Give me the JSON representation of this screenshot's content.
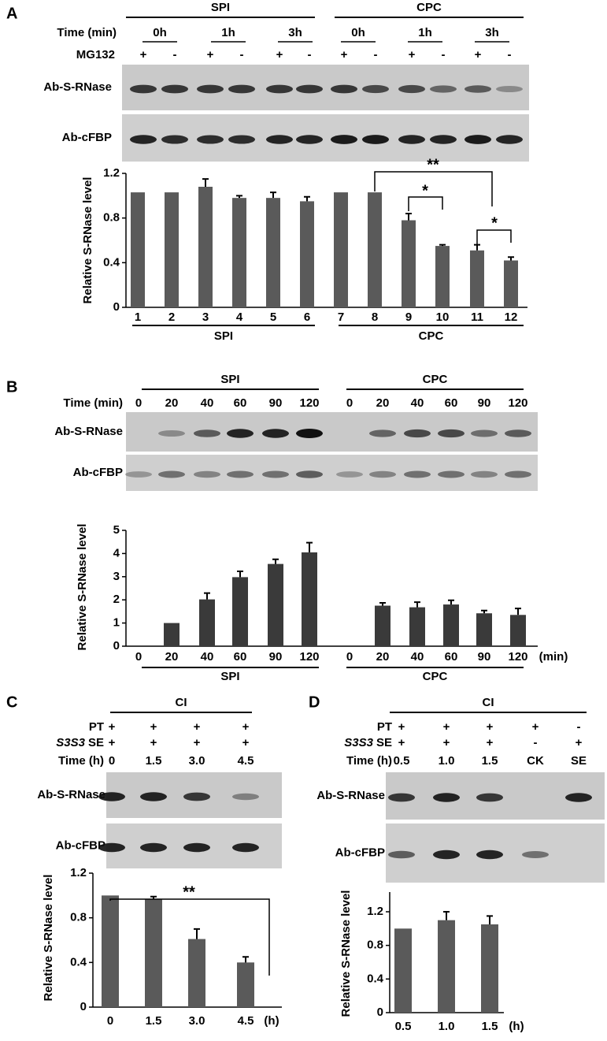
{
  "panels": [
    {
      "label": "A",
      "groups": [
        "SPI",
        "CPC"
      ],
      "time_label": "Time (min)",
      "times": [
        "0h",
        "1h",
        "3h",
        "0h",
        "1h",
        "3h"
      ],
      "rows": [
        {
          "label": "MG132",
          "signs": [
            "+",
            "-",
            "+",
            "-",
            "+",
            "-",
            "+",
            "-",
            "+",
            "-",
            "+",
            "-"
          ]
        }
      ],
      "blots": [
        "Ab-S-RNase",
        "Ab-cFBP"
      ]
    },
    {
      "label": "B",
      "groups": [
        "SPI",
        "CPC"
      ],
      "time_label": "Time (min)",
      "times": [
        "0",
        "20",
        "40",
        "60",
        "90",
        "120",
        "0",
        "20",
        "40",
        "60",
        "90",
        "120"
      ],
      "rows": [],
      "blots": [
        "Ab-S-RNase",
        "Ab-cFBP"
      ]
    },
    {
      "label": "C",
      "groups": [
        "CI"
      ],
      "time_label": "Time (h)",
      "times": [
        "0",
        "1.5",
        "3.0",
        "4.5"
      ],
      "rows": [
        {
          "label": "PT",
          "signs": [
            "+",
            "+",
            "+",
            "+"
          ]
        },
        {
          "prefix": "S3S3",
          "label": "SE",
          "signs": [
            "+",
            "+",
            "+",
            "+"
          ]
        }
      ],
      "blots": [
        "Ab-S-RNase",
        "Ab-cFBP"
      ]
    },
    {
      "label": "D",
      "groups": [
        "CI"
      ],
      "time_label": "Time (h)",
      "times": [
        "0.5",
        "1.0",
        "1.5",
        "CK",
        "SE"
      ],
      "rows": [
        {
          "label": "PT",
          "signs": [
            "+",
            "+",
            "+",
            "+",
            "-"
          ]
        },
        {
          "prefix": "S3S3",
          "label": "SE",
          "signs": [
            "+",
            "+",
            "+",
            "-",
            "+"
          ]
        }
      ],
      "blots": [
        "Ab-S-RNase",
        "Ab-cFBP"
      ]
    }
  ],
  "chart_data": [
    {
      "type": "bar",
      "y_label": "Relative S-RNase level",
      "categories": [
        "1",
        "2",
        "3",
        "4",
        "5",
        "6",
        "7",
        "8",
        "9",
        "10",
        "11",
        "12"
      ],
      "values": [
        1.03,
        1.03,
        1.08,
        0.98,
        0.98,
        0.95,
        1.03,
        1.03,
        0.78,
        0.55,
        0.51,
        0.42
      ],
      "errors": [
        null,
        null,
        0.07,
        0.02,
        0.05,
        0.04,
        null,
        null,
        0.06,
        0.01,
        0.05,
        0.03
      ],
      "color": "#5a5a5a",
      "ylim": [
        0,
        1.2
      ],
      "yticks": [
        0,
        0.4,
        0.8,
        1.2
      ],
      "groups": [
        "SPI",
        "CPC"
      ],
      "annotations": [
        "**",
        "*",
        "*"
      ]
    },
    {
      "type": "bar",
      "y_label": "Relative S-RNase level",
      "x_unit": "(min)",
      "categories": [
        "0",
        "20",
        "40",
        "60",
        "90",
        "120",
        "0",
        "20",
        "40",
        "60",
        "90",
        "120"
      ],
      "values": [
        null,
        1.0,
        2.02,
        2.98,
        3.55,
        4.05,
        null,
        1.75,
        1.68,
        1.8,
        1.42,
        1.35
      ],
      "errors": [
        null,
        null,
        0.27,
        0.25,
        0.2,
        0.42,
        null,
        0.12,
        0.22,
        0.18,
        0.12,
        0.28
      ],
      "color": "#3a3a3a",
      "ylim": [
        0,
        5
      ],
      "yticks": [
        0,
        1,
        2,
        3,
        4,
        5
      ],
      "groups": [
        "SPI",
        "CPC"
      ],
      "annotations": []
    },
    {
      "type": "bar",
      "y_label": "Relative S-RNase level",
      "x_unit": "(h)",
      "categories": [
        "0",
        "1.5",
        "3.0",
        "4.5"
      ],
      "values": [
        1.0,
        0.97,
        0.61,
        0.4
      ],
      "errors": [
        null,
        0.02,
        0.09,
        0.05
      ],
      "color": "#5a5a5a",
      "ylim": [
        0,
        1.2
      ],
      "yticks": [
        0,
        0.4,
        0.8,
        1.2
      ],
      "groups": [],
      "annotations": [
        "**"
      ]
    },
    {
      "type": "bar",
      "y_label": "Relative S-RNase level",
      "x_unit": "(h)",
      "categories": [
        "0.5",
        "1.0",
        "1.5"
      ],
      "values": [
        1.0,
        1.1,
        1.05
      ],
      "errors": [
        null,
        0.1,
        0.1
      ],
      "color": "#5a5a5a",
      "ylim": [
        0,
        1.2
      ],
      "yticks": [
        0,
        0.4,
        0.8,
        1.2
      ],
      "groups": [],
      "annotations": []
    }
  ]
}
